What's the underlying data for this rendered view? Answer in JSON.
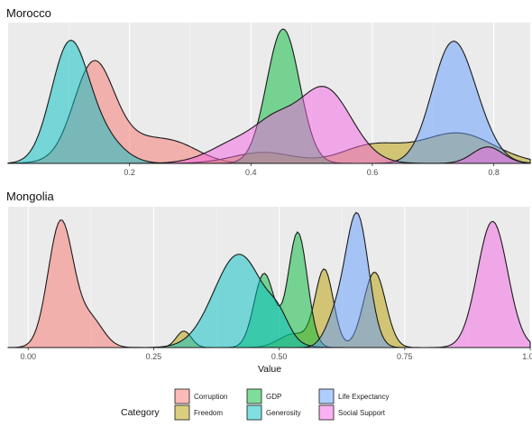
{
  "chart_data": {
    "type": "area",
    "xlabel": "Value",
    "legend": {
      "title": "Category",
      "position": "bottom",
      "entries": [
        {
          "name": "Corruption",
          "color": "#F8766D"
        },
        {
          "name": "Freedom",
          "color": "#B79F00"
        },
        {
          "name": "GDP",
          "color": "#00BA38"
        },
        {
          "name": "Generosity",
          "color": "#00BFC4"
        },
        {
          "name": "Life Expectancy",
          "color": "#619CFF"
        },
        {
          "name": "Social Support",
          "color": "#F564E3"
        }
      ]
    },
    "grid": true,
    "panels": [
      {
        "title": "Morocco",
        "xlim": [
          0.0,
          0.86
        ],
        "ticks": [
          0.2,
          0.4,
          0.6,
          0.8
        ],
        "tick_labels": [
          "0.2",
          "0.4",
          "0.6",
          "0.8"
        ],
        "ylim": [
          0,
          1.0
        ],
        "series": [
          {
            "name": "Corruption",
            "peaks": [
              [
                0.14,
                0.62,
                0.032
              ],
              [
                0.19,
                0.18,
                0.06
              ],
              [
                0.28,
                0.1,
                0.04
              ]
            ]
          },
          {
            "name": "Freedom",
            "peaks": [
              [
                0.42,
                0.08,
                0.05
              ],
              [
                0.6,
                0.13,
                0.05
              ],
              [
                0.74,
                0.22,
                0.06
              ]
            ]
          },
          {
            "name": "GDP",
            "peaks": [
              [
                0.453,
                0.98,
                0.027
              ]
            ]
          },
          {
            "name": "Generosity",
            "peaks": [
              [
                0.1,
                0.82,
                0.03
              ],
              [
                0.15,
                0.2,
                0.035
              ]
            ]
          },
          {
            "name": "Life Expectancy",
            "peaks": [
              [
                0.73,
                0.83,
                0.033
              ],
              [
                0.775,
                0.17,
                0.03
              ]
            ]
          },
          {
            "name": "Social Support",
            "peaks": [
              [
                0.39,
                0.18,
                0.05
              ],
              [
                0.52,
                0.55,
                0.045
              ],
              [
                0.44,
                0.15,
                0.03
              ],
              [
                0.79,
                0.12,
                0.025
              ]
            ]
          }
        ]
      },
      {
        "title": "Mongolia",
        "xlim": [
          -0.04,
          1.0
        ],
        "ticks": [
          0.0,
          0.25,
          0.5,
          0.75,
          1.0
        ],
        "tick_labels": [
          "0.00",
          "0.25",
          "0.50",
          "0.75",
          "1.00"
        ],
        "ylim": [
          0,
          1.0
        ],
        "series": [
          {
            "name": "Corruption",
            "peaks": [
              [
                0.065,
                0.92,
                0.025
              ],
              [
                0.125,
                0.2,
                0.025
              ]
            ]
          },
          {
            "name": "Freedom",
            "peaks": [
              [
                0.31,
                0.12,
                0.015
              ],
              [
                0.59,
                0.56,
                0.018
              ],
              [
                0.69,
                0.55,
                0.022
              ],
              [
                0.53,
                0.1,
                0.03
              ]
            ]
          },
          {
            "name": "GDP",
            "peaks": [
              [
                0.537,
                0.84,
                0.019
              ],
              [
                0.47,
                0.54,
                0.02
              ]
            ]
          },
          {
            "name": "Generosity",
            "peaks": [
              [
                0.42,
                0.68,
                0.05
              ],
              [
                0.5,
                0.12,
                0.02
              ]
            ]
          },
          {
            "name": "Life Expectancy",
            "peaks": [
              [
                0.655,
                0.97,
                0.023
              ],
              [
                0.61,
                0.18,
                0.02
              ]
            ]
          },
          {
            "name": "Social Support",
            "peaks": [
              [
                0.925,
                0.92,
                0.03
              ]
            ]
          }
        ]
      }
    ]
  }
}
